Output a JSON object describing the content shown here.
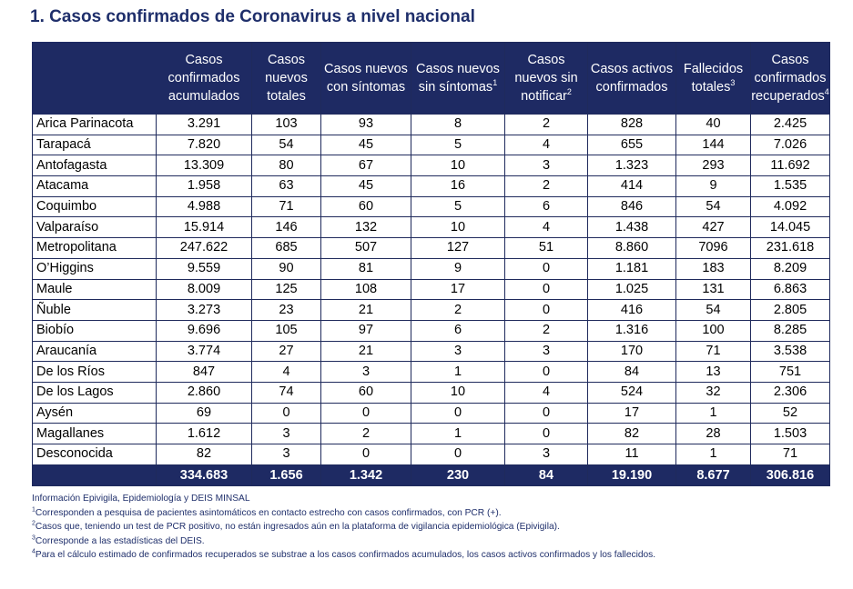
{
  "title": "1. Casos confirmados de Coronavirus a nivel nacional",
  "headers": [
    {
      "text": "Casos confirmados acumulados",
      "sup": ""
    },
    {
      "text": "Casos nuevos totales",
      "sup": ""
    },
    {
      "text": "Casos nuevos con síntomas",
      "sup": ""
    },
    {
      "text": "Casos nuevos sin síntomas",
      "sup": "1"
    },
    {
      "text": "Casos nuevos sin notificar",
      "sup": "2"
    },
    {
      "text": "Casos activos confirmados",
      "sup": ""
    },
    {
      "text": "Fallecidos totales",
      "sup": "3"
    },
    {
      "text": "Casos confirmados recuperados",
      "sup": "4"
    }
  ],
  "rows": [
    {
      "region": "Arica Parinacota",
      "values": [
        "3.291",
        "103",
        "93",
        "8",
        "2",
        "828",
        "40",
        "2.425"
      ]
    },
    {
      "region": "Tarapacá",
      "values": [
        "7.820",
        "54",
        "45",
        "5",
        "4",
        "655",
        "144",
        "7.026"
      ]
    },
    {
      "region": "Antofagasta",
      "values": [
        "13.309",
        "80",
        "67",
        "10",
        "3",
        "1.323",
        "293",
        "11.692"
      ]
    },
    {
      "region": "Atacama",
      "values": [
        "1.958",
        "63",
        "45",
        "16",
        "2",
        "414",
        "9",
        "1.535"
      ]
    },
    {
      "region": "Coquimbo",
      "values": [
        "4.988",
        "71",
        "60",
        "5",
        "6",
        "846",
        "54",
        "4.092"
      ]
    },
    {
      "region": "Valparaíso",
      "values": [
        "15.914",
        "146",
        "132",
        "10",
        "4",
        "1.438",
        "427",
        "14.045"
      ]
    },
    {
      "region": "Metropolitana",
      "values": [
        "247.622",
        "685",
        "507",
        "127",
        "51",
        "8.860",
        "7096",
        "231.618"
      ]
    },
    {
      "region": "O’Higgins",
      "values": [
        "9.559",
        "90",
        "81",
        "9",
        "0",
        "1.181",
        "183",
        "8.209"
      ]
    },
    {
      "region": "Maule",
      "values": [
        "8.009",
        "125",
        "108",
        "17",
        "0",
        "1.025",
        "131",
        "6.863"
      ]
    },
    {
      "region": "Ñuble",
      "values": [
        "3.273",
        "23",
        "21",
        "2",
        "0",
        "416",
        "54",
        "2.805"
      ]
    },
    {
      "region": "Biobío",
      "values": [
        "9.696",
        "105",
        "97",
        "6",
        "2",
        "1.316",
        "100",
        "8.285"
      ]
    },
    {
      "region": "Araucanía",
      "values": [
        "3.774",
        "27",
        "21",
        "3",
        "3",
        "170",
        "71",
        "3.538"
      ]
    },
    {
      "region": "De los Ríos",
      "values": [
        "847",
        "4",
        "3",
        "1",
        "0",
        "84",
        "13",
        "751"
      ]
    },
    {
      "region": "De los Lagos",
      "values": [
        "2.860",
        "74",
        "60",
        "10",
        "4",
        "524",
        "32",
        "2.306"
      ]
    },
    {
      "region": "Aysén",
      "values": [
        "69",
        "0",
        "0",
        "0",
        "0",
        "17",
        "1",
        "52"
      ]
    },
    {
      "region": "Magallanes",
      "values": [
        "1.612",
        "3",
        "2",
        "1",
        "0",
        "82",
        "28",
        "1.503"
      ]
    },
    {
      "region": "Desconocida",
      "values": [
        "82",
        "3",
        "0",
        "0",
        "3",
        "11",
        "1",
        "71"
      ]
    }
  ],
  "totals": [
    "334.683",
    "1.656",
    "1.342",
    "230",
    "84",
    "19.190",
    "8.677",
    "306.816"
  ],
  "notes": [
    {
      "sup": "",
      "text": "Información Epivigila, Epidemiología y DEIS MINSAL"
    },
    {
      "sup": "1",
      "text": "Corresponden a pesquisa de pacientes asintomáticos en contacto estrecho con casos confirmados, con PCR (+)."
    },
    {
      "sup": "2",
      "text": "Casos que, teniendo un test de PCR positivo, no están ingresados aún en la plataforma de vigilancia epidemiológica (Epivigila)."
    },
    {
      "sup": "3",
      "text": "Corresponde a las estadísticas del DEIS."
    },
    {
      "sup": "4",
      "text": "Para el cálculo estimado de confirmados recuperados se substrae a los casos confirmados acumulados, los casos activos confirmados y los fallecidos."
    }
  ],
  "colors": {
    "header_bg": "#1e2a63",
    "title": "#1f2f6b"
  }
}
